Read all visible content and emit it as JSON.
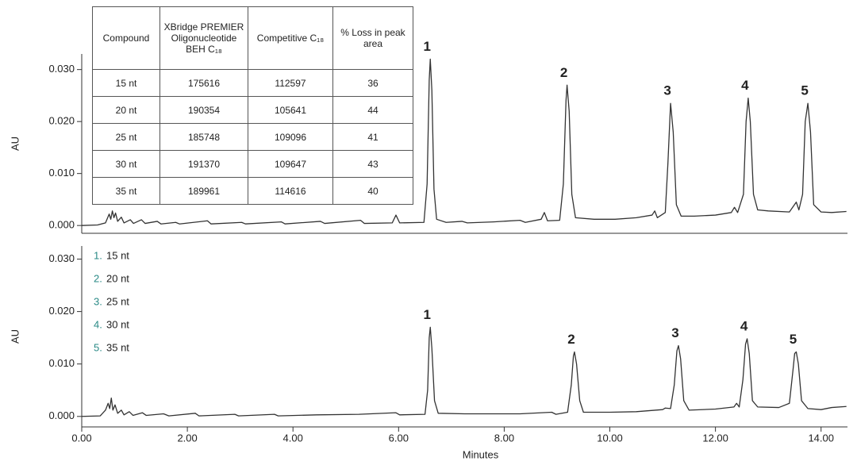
{
  "table": {
    "header": [
      "Compound",
      "XBridge PREMIER Oligonucleotide BEH C₁₈",
      "Competitive C₁₈",
      "% Loss in peak area"
    ],
    "rows": [
      [
        "15 nt",
        175616,
        112597,
        36
      ],
      [
        "20 nt",
        190354,
        105641,
        44
      ],
      [
        "25 nt",
        185748,
        109096,
        41
      ],
      [
        "30 nt",
        191370,
        109647,
        43
      ],
      [
        "35 nt",
        189961,
        114616,
        40
      ]
    ]
  },
  "chart_data": [
    {
      "type": "line",
      "y_label": "AU",
      "color": "#333333",
      "xlim": [
        0,
        14.5
      ],
      "ylim": [
        -0.0015,
        0.033
      ],
      "yticks": [
        {
          "value": 0,
          "label": "0.000"
        },
        {
          "value": 0.01,
          "label": "0.010"
        },
        {
          "value": 0.02,
          "label": "0.020"
        },
        {
          "value": 0.03,
          "label": "0.030"
        }
      ],
      "x": [
        0,
        0.3,
        0.45,
        0.52,
        0.55,
        0.58,
        0.61,
        0.64,
        0.68,
        0.75,
        0.8,
        0.92,
        0.98,
        1.13,
        1.2,
        1.43,
        1.5,
        1.78,
        1.85,
        2.38,
        2.45,
        3.03,
        3.1,
        3.78,
        3.85,
        4.52,
        4.6,
        5.28,
        5.35,
        5.88,
        5.95,
        6.02,
        6.48,
        6.54,
        6.58,
        6.6,
        6.63,
        6.67,
        6.72,
        6.9,
        7.2,
        7.3,
        7.8,
        8.3,
        8.4,
        8.7,
        8.76,
        8.82,
        9.05,
        9.12,
        9.17,
        9.19,
        9.23,
        9.28,
        9.35,
        9.7,
        10.1,
        10.5,
        10.8,
        10.85,
        10.9,
        11.05,
        11.1,
        11.15,
        11.2,
        11.26,
        11.35,
        11.6,
        12.0,
        12.3,
        12.36,
        12.42,
        12.53,
        12.58,
        12.62,
        12.66,
        12.72,
        12.8,
        13.0,
        13.4,
        13.53,
        13.58,
        13.65,
        13.7,
        13.75,
        13.8,
        13.86,
        14.0,
        14.2,
        14.48
      ],
      "values": [
        0,
        0.0001,
        0.0005,
        0.0022,
        0.0012,
        0.0028,
        0.0015,
        0.0024,
        0.0008,
        0.0016,
        0.0005,
        0.0011,
        0.0004,
        0.0011,
        0.0004,
        0.0008,
        0.0003,
        0.0006,
        0.0003,
        0.0009,
        0.0003,
        0.0006,
        0.0003,
        0.0007,
        0.0003,
        0.0008,
        0.0004,
        0.001,
        0.0004,
        0.0005,
        0.002,
        0.0005,
        0.0006,
        0.008,
        0.028,
        0.032,
        0.026,
        0.007,
        0.0012,
        0.0006,
        0.0008,
        0.0005,
        0.0007,
        0.001,
        0.0006,
        0.0012,
        0.0025,
        0.0009,
        0.001,
        0.008,
        0.024,
        0.027,
        0.022,
        0.006,
        0.0015,
        0.0012,
        0.0012,
        0.0015,
        0.002,
        0.0028,
        0.0015,
        0.0025,
        0.012,
        0.0235,
        0.018,
        0.004,
        0.0018,
        0.0018,
        0.002,
        0.0025,
        0.0035,
        0.0025,
        0.006,
        0.02,
        0.0245,
        0.02,
        0.006,
        0.003,
        0.0028,
        0.0026,
        0.0045,
        0.003,
        0.006,
        0.02,
        0.0235,
        0.018,
        0.004,
        0.0026,
        0.0025,
        0.0027
      ],
      "annotations": [
        {
          "text": "1",
          "x": 6.6
        },
        {
          "text": "2",
          "x": 9.19
        },
        {
          "text": "3",
          "x": 11.15
        },
        {
          "text": "4",
          "x": 12.62
        },
        {
          "text": "5",
          "x": 13.75
        }
      ]
    },
    {
      "type": "line",
      "y_label": "AU",
      "x_label": "Minutes",
      "color": "#333333",
      "xlim": [
        0,
        14.5
      ],
      "ylim": [
        -0.002,
        0.0325
      ],
      "xticks": [
        {
          "value": 0,
          "label": "0.00"
        },
        {
          "value": 2,
          "label": "2.00"
        },
        {
          "value": 4,
          "label": "4.00"
        },
        {
          "value": 6,
          "label": "6.00"
        },
        {
          "value": 8,
          "label": "8.00"
        },
        {
          "value": 10,
          "label": "10.00"
        },
        {
          "value": 12,
          "label": "12.00"
        },
        {
          "value": 14,
          "label": "14.00"
        }
      ],
      "yticks": [
        {
          "value": 0,
          "label": "0.000"
        },
        {
          "value": 0.01,
          "label": "0.010"
        },
        {
          "value": 0.02,
          "label": "0.020"
        },
        {
          "value": 0.03,
          "label": "0.030"
        }
      ],
      "x": [
        0,
        0.35,
        0.45,
        0.5,
        0.53,
        0.56,
        0.59,
        0.63,
        0.68,
        0.75,
        0.8,
        0.9,
        0.97,
        1.15,
        1.22,
        1.55,
        1.65,
        2.15,
        2.22,
        2.9,
        2.97,
        3.65,
        3.72,
        4.45,
        5.25,
        5.95,
        6.02,
        6.5,
        6.55,
        6.58,
        6.6,
        6.63,
        6.68,
        6.75,
        7.25,
        8.3,
        8.9,
        8.98,
        9.2,
        9.27,
        9.31,
        9.33,
        9.37,
        9.43,
        9.5,
        10.0,
        10.5,
        11.0,
        11.05,
        11.15,
        11.22,
        11.27,
        11.3,
        11.34,
        11.4,
        11.5,
        12.0,
        12.35,
        12.4,
        12.45,
        12.52,
        12.57,
        12.6,
        12.64,
        12.7,
        12.8,
        13.2,
        13.4,
        13.47,
        13.5,
        13.53,
        13.57,
        13.63,
        13.75,
        14.0,
        14.2,
        14.48
      ],
      "values": [
        0,
        0.0001,
        0.0012,
        0.0025,
        0.0015,
        0.0035,
        0.0012,
        0.0022,
        0.0006,
        0.0012,
        0.0003,
        0.0009,
        0.0002,
        0.0007,
        0.0002,
        0.0005,
        0.0001,
        0.0006,
        0.0001,
        0.0004,
        0.0001,
        0.0004,
        0.0001,
        0.0003,
        0.0004,
        0.0007,
        0.0003,
        0.0004,
        0.005,
        0.015,
        0.017,
        0.013,
        0.003,
        0.0006,
        0.0005,
        0.0005,
        0.0008,
        0.0004,
        0.0008,
        0.006,
        0.0115,
        0.0123,
        0.01,
        0.003,
        0.0008,
        0.0008,
        0.0009,
        0.0013,
        0.0016,
        0.0015,
        0.006,
        0.0125,
        0.0135,
        0.011,
        0.003,
        0.0012,
        0.0014,
        0.0018,
        0.0025,
        0.0018,
        0.007,
        0.0138,
        0.0148,
        0.012,
        0.003,
        0.0018,
        0.0017,
        0.0025,
        0.009,
        0.012,
        0.0123,
        0.01,
        0.003,
        0.0015,
        0.0013,
        0.0017,
        0.0019
      ],
      "annotations": [
        {
          "text": "1",
          "x": 6.6
        },
        {
          "text": "2",
          "x": 9.33
        },
        {
          "text": "3",
          "x": 11.3
        },
        {
          "text": "4",
          "x": 12.6
        },
        {
          "text": "5",
          "x": 13.53
        }
      ],
      "legend_items": [
        {
          "number": "1.",
          "label": "15 nt"
        },
        {
          "number": "2.",
          "label": "20 nt"
        },
        {
          "number": "3.",
          "label": "25 nt"
        },
        {
          "number": "4.",
          "label": "30 nt"
        },
        {
          "number": "5.",
          "label": "35 nt"
        }
      ]
    }
  ]
}
